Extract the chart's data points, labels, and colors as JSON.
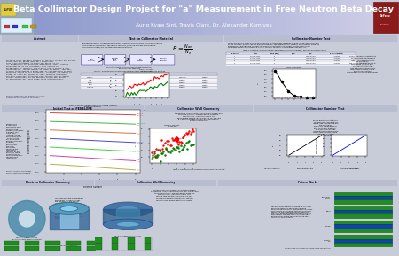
{
  "title": "Beta Collimator Design Project for \"a\" Measurement in Free Neutron Beta Decay",
  "authors": "Aung Kyaw Sint, Travis Clark, Dr. Alexander Komives",
  "header_gradient_left": "#8899cc",
  "header_gradient_right": "#aabbdd",
  "body_bg": "#e8ecf0",
  "panel_bg": "#ffffff",
  "panel_title_bg": "#aab0c8",
  "section_names": [
    "Abstract",
    "Test on Collimator Material",
    "Collimator Number Test",
    "Initial Test of PENELOPE",
    "Electron Collimator Geometry",
    "Collimator Wall Geometry",
    "Future Work"
  ],
  "penelope_colors": [
    "#cc3333",
    "#33aa33",
    "#cc6633",
    "#3333cc",
    "#33cc33",
    "#cc3399",
    "#aaaa33"
  ],
  "wall_bar_colors": [
    "#0000cc",
    "#228B22"
  ],
  "torus_color": "#336699",
  "torus_hole_color": "#88ccdd"
}
